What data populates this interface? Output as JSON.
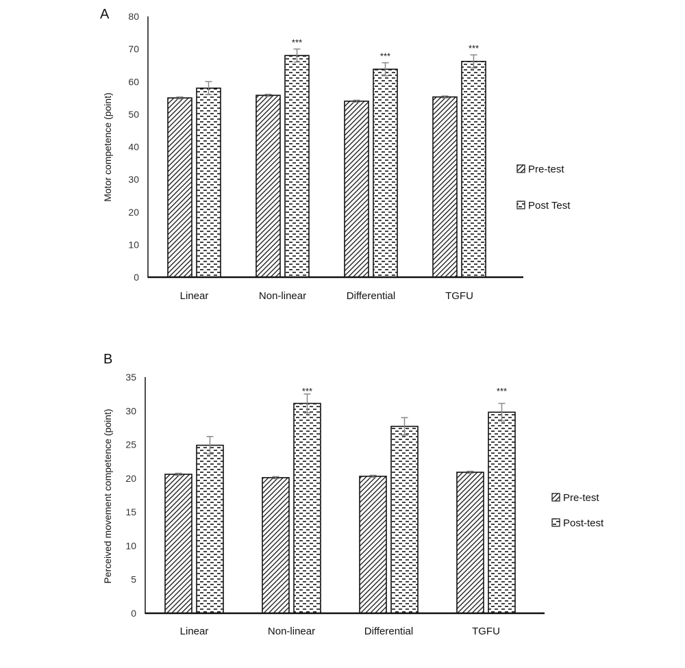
{
  "chart_data": [
    {
      "type": "bar",
      "panel_label": "A",
      "categories": [
        "Linear",
        "Non-linear",
        "Differential",
        "TGFU"
      ],
      "ylabel": "Motor competence (point)",
      "xlabel": "",
      "ylim": [
        0,
        80
      ],
      "yticks": [
        0,
        10,
        20,
        30,
        40,
        50,
        60,
        70,
        80
      ],
      "grid": false,
      "legend_position": "right",
      "series": [
        {
          "name": "Pre-test",
          "pattern": "diagonal-hatch",
          "values": [
            55.0,
            55.8,
            54.0,
            55.3
          ],
          "errors": [
            0.3,
            0.3,
            0.3,
            0.3
          ]
        },
        {
          "name": "Post Test",
          "pattern": "dashes",
          "values": [
            58.0,
            68.0,
            63.8,
            66.2
          ],
          "errors": [
            2.0,
            2.0,
            2.0,
            2.0
          ]
        }
      ],
      "annotations": [
        {
          "category": "Non-linear",
          "series": "Post Test",
          "text": "***"
        },
        {
          "category": "Differential",
          "series": "Post Test",
          "text": "***"
        },
        {
          "category": "TGFU",
          "series": "Post Test",
          "text": "***"
        }
      ]
    },
    {
      "type": "bar",
      "panel_label": "B",
      "categories": [
        "Linear",
        "Non-linear",
        "Differential",
        "TGFU"
      ],
      "ylabel": "Perceived movement competence (point)",
      "xlabel": "",
      "ylim": [
        0,
        35
      ],
      "yticks": [
        0,
        5,
        10,
        15,
        20,
        25,
        30,
        35
      ],
      "grid": false,
      "legend_position": "right",
      "series": [
        {
          "name": "Pre-test",
          "pattern": "diagonal-hatch",
          "values": [
            20.6,
            20.1,
            20.3,
            20.9
          ],
          "errors": [
            0.15,
            0.15,
            0.15,
            0.15
          ]
        },
        {
          "name": "Post-test",
          "pattern": "dashes",
          "values": [
            24.9,
            31.1,
            27.7,
            29.8
          ],
          "errors": [
            1.3,
            1.4,
            1.3,
            1.3
          ]
        }
      ],
      "annotations": [
        {
          "category": "Non-linear",
          "series": "Post-test",
          "text": "***",
          "placement": "high"
        },
        {
          "category": "TGFU",
          "series": "Post-test",
          "text": "***",
          "placement": "high"
        }
      ]
    }
  ],
  "colors": {
    "axis": "#111111",
    "bar_outline": "#111111",
    "pattern_ink": "#111111",
    "pattern_bg": "#ffffff",
    "error_bar": "#888888"
  }
}
